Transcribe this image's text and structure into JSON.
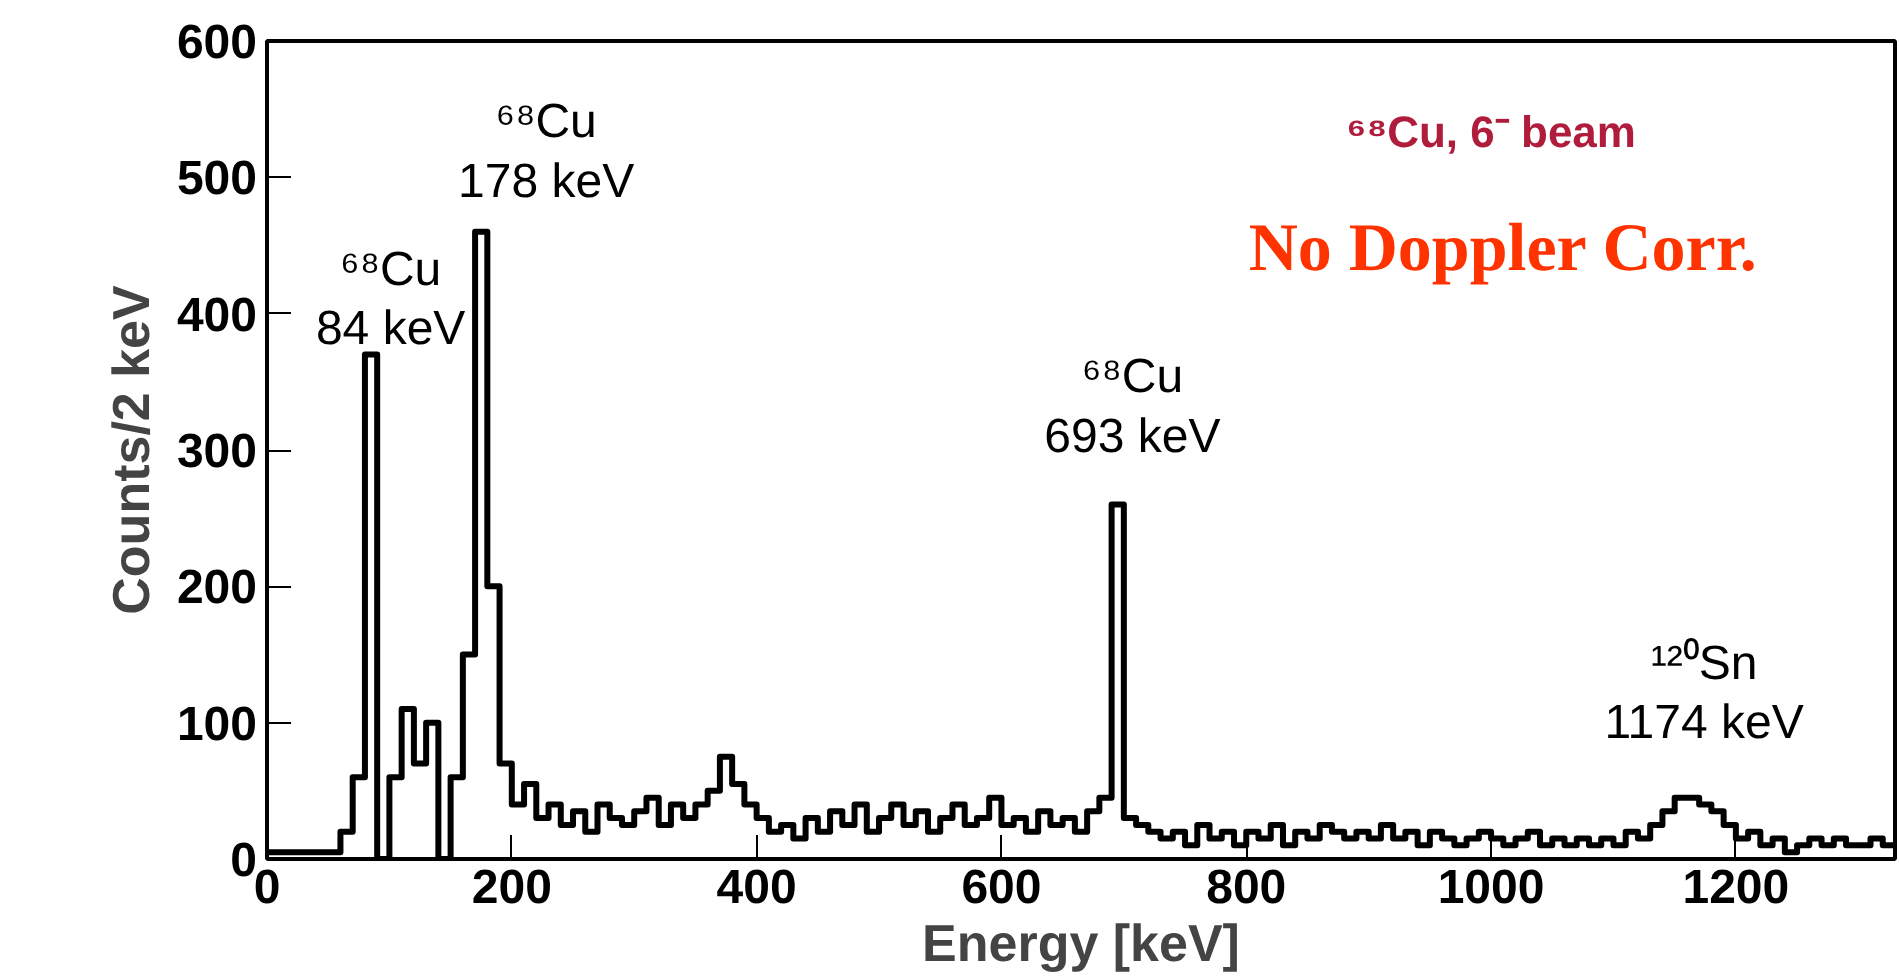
{
  "chart_data": {
    "type": "histogram",
    "xlabel": "Energy [keV]",
    "ylabel": "Counts/2 keV",
    "bins": [
      0,
      10,
      20,
      30,
      40,
      50,
      60,
      70,
      80,
      90,
      100,
      110,
      120,
      130,
      140,
      150,
      160,
      170,
      180,
      190,
      200,
      210,
      220,
      230,
      240,
      250,
      260,
      270,
      280,
      290,
      300,
      310,
      320,
      330,
      340,
      350,
      360,
      370,
      380,
      390,
      400,
      410,
      420,
      430,
      440,
      450,
      460,
      470,
      480,
      490,
      500,
      510,
      520,
      530,
      540,
      550,
      560,
      570,
      580,
      590,
      600,
      610,
      620,
      630,
      640,
      650,
      660,
      670,
      680,
      690,
      700,
      710,
      720,
      730,
      740,
      750,
      760,
      770,
      780,
      790,
      800,
      810,
      820,
      830,
      840,
      850,
      860,
      870,
      880,
      890,
      900,
      910,
      920,
      930,
      940,
      950,
      960,
      970,
      980,
      990,
      1000,
      1010,
      1020,
      1030,
      1040,
      1050,
      1060,
      1070,
      1080,
      1090,
      1100,
      1110,
      1120,
      1130,
      1140,
      1150,
      1160,
      1170,
      1180,
      1190,
      1200,
      1210,
      1220,
      1230,
      1240,
      1250,
      1260,
      1270,
      1280,
      1290,
      1300,
      1310,
      1320,
      1330
    ],
    "values": [
      5,
      5,
      5,
      5,
      5,
      5,
      20,
      60,
      370,
      0,
      60,
      110,
      70,
      100,
      0,
      60,
      150,
      460,
      200,
      70,
      40,
      55,
      30,
      40,
      25,
      35,
      20,
      40,
      30,
      25,
      35,
      45,
      25,
      40,
      30,
      40,
      50,
      75,
      55,
      40,
      30,
      20,
      25,
      15,
      30,
      20,
      35,
      25,
      40,
      20,
      30,
      40,
      25,
      35,
      20,
      30,
      40,
      25,
      30,
      45,
      25,
      30,
      20,
      35,
      25,
      30,
      20,
      35,
      45,
      260,
      30,
      25,
      20,
      15,
      20,
      10,
      25,
      15,
      20,
      10,
      20,
      15,
      25,
      10,
      20,
      15,
      25,
      20,
      15,
      20,
      15,
      25,
      15,
      20,
      10,
      20,
      15,
      10,
      15,
      20,
      15,
      10,
      15,
      20,
      10,
      15,
      10,
      15,
      10,
      15,
      10,
      20,
      15,
      25,
      35,
      45,
      45,
      40,
      35,
      25,
      15,
      20,
      10,
      15,
      5,
      10,
      15,
      10,
      15,
      10,
      10,
      15,
      10
    ],
    "color": "#000000",
    "xlim": [
      0,
      1330
    ],
    "ylim": [
      0,
      600
    ],
    "xticks": [
      0,
      200,
      400,
      600,
      800,
      1000,
      1200
    ],
    "yticks": [
      0,
      100,
      200,
      300,
      400,
      500,
      600
    ],
    "grid": false,
    "annotations": [
      "⁶⁸Cu\n84 keV",
      "⁶⁸Cu\n178 keV",
      "⁶⁸Cu\n693 keV",
      "¹²⁰Sn\n1174 keV",
      "⁶⁸Cu, 6⁻ beam",
      "No Doppler Corr."
    ]
  }
}
